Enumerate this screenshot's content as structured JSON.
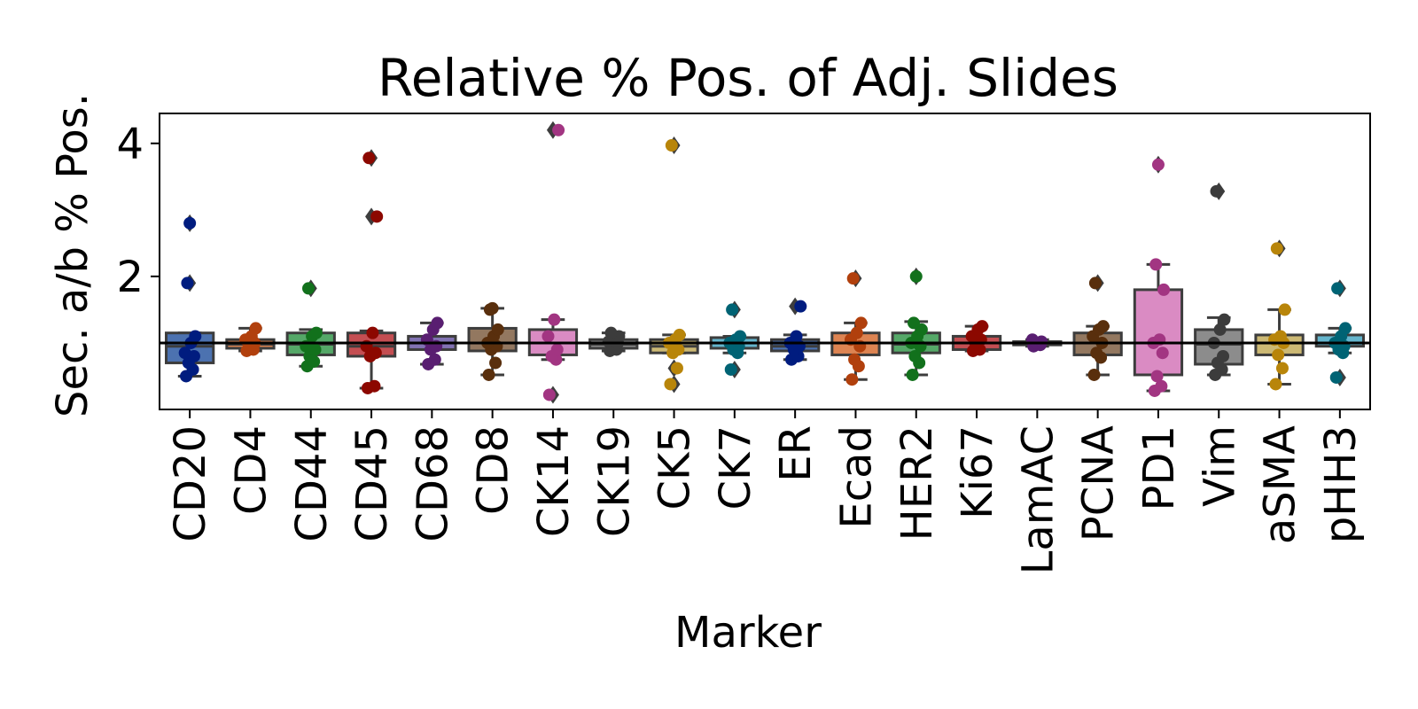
{
  "chart_data": {
    "type": "box",
    "title": "Relative % Pos. of Adj. Slides",
    "xlabel": "Marker",
    "ylabel": "Sec. a/b % Pos.",
    "ylim": [
      0,
      4.45
    ],
    "yticks": [
      2,
      4
    ],
    "reference_line": 1.0,
    "grid": false,
    "legend": "none",
    "categories": [
      "CD20",
      "CD4",
      "CD44",
      "CD45",
      "CD68",
      "CD8",
      "CK14",
      "CK19",
      "CK5",
      "CK7",
      "ER",
      "Ecad",
      "HER2",
      "Ki67",
      "LamAC",
      "PCNA",
      "PD1",
      "Vim",
      "aSMA",
      "pHH3"
    ],
    "series": [
      {
        "category": "CD20",
        "box_color": "#4c72b0",
        "point_color": "#001c7f",
        "box": {
          "whisker_low": 0.5,
          "q1": 0.7,
          "median": 0.95,
          "q3": 1.15,
          "whisker_high": 1.15
        },
        "outliers": [
          1.9,
          2.8
        ],
        "points": [
          0.5,
          0.6,
          0.7,
          0.8,
          0.85,
          1.0,
          1.1,
          1.9,
          2.8
        ]
      },
      {
        "category": "CD4",
        "box_color": "#dd8452",
        "point_color": "#b1400d",
        "box": {
          "whisker_low": 0.88,
          "q1": 0.92,
          "median": 0.98,
          "q3": 1.05,
          "whisker_high": 1.22
        },
        "outliers": [],
        "points": [
          0.88,
          0.9,
          0.95,
          1.0,
          1.05,
          1.1,
          1.22
        ]
      },
      {
        "category": "CD44",
        "box_color": "#55a868",
        "point_color": "#12711c",
        "box": {
          "whisker_low": 0.65,
          "q1": 0.82,
          "median": 0.98,
          "q3": 1.15,
          "whisker_high": 1.2
        },
        "outliers": [
          1.82
        ],
        "points": [
          0.65,
          0.72,
          0.8,
          0.9,
          0.95,
          1.1,
          1.15,
          1.82
        ]
      },
      {
        "category": "CD45",
        "box_color": "#c44e52",
        "point_color": "#8c0800",
        "box": {
          "whisker_low": 0.32,
          "q1": 0.8,
          "median": 0.95,
          "q3": 1.15,
          "whisker_high": 1.18
        },
        "outliers": [
          2.9,
          3.78
        ],
        "points": [
          0.32,
          0.35,
          0.8,
          0.85,
          0.95,
          1.15,
          2.9,
          3.78
        ]
      },
      {
        "category": "CD68",
        "box_color": "#8172b3",
        "point_color": "#591e71",
        "box": {
          "whisker_low": 0.68,
          "q1": 0.9,
          "median": 1.0,
          "q3": 1.1,
          "whisker_high": 1.3
        },
        "outliers": [],
        "points": [
          0.68,
          0.75,
          0.9,
          0.95,
          1.05,
          1.2,
          1.3
        ]
      },
      {
        "category": "CD8",
        "box_color": "#937860",
        "point_color": "#592f0d",
        "box": {
          "whisker_low": 0.52,
          "q1": 0.88,
          "median": 1.0,
          "q3": 1.22,
          "whisker_high": 1.52
        },
        "outliers": [],
        "points": [
          0.52,
          0.7,
          0.9,
          0.95,
          1.0,
          1.1,
          1.2,
          1.5,
          1.52
        ]
      },
      {
        "category": "CK14",
        "box_color": "#da8bc3",
        "point_color": "#a23582",
        "box": {
          "whisker_low": 0.75,
          "q1": 0.82,
          "median": 1.0,
          "q3": 1.2,
          "whisker_high": 1.35
        },
        "outliers": [
          0.22,
          4.2
        ],
        "points": [
          0.22,
          0.75,
          0.8,
          0.9,
          1.1,
          1.35,
          4.2
        ]
      },
      {
        "category": "CK19",
        "box_color": "#8c8c8c",
        "point_color": "#3c3c3c",
        "box": {
          "whisker_low": 0.88,
          "q1": 0.92,
          "median": 0.98,
          "q3": 1.05,
          "whisker_high": 1.15
        },
        "outliers": [],
        "points": [
          0.88,
          0.9,
          0.95,
          1.0,
          1.02,
          1.05,
          1.1,
          1.15
        ]
      },
      {
        "category": "CK5",
        "box_color": "#ccb974",
        "point_color": "#b8850a",
        "box": {
          "whisker_low": 0.85,
          "q1": 0.85,
          "median": 0.95,
          "q3": 1.05,
          "whisker_high": 1.12
        },
        "outliers": [
          0.38,
          0.62,
          3.97
        ],
        "points": [
          0.38,
          0.62,
          0.85,
          0.9,
          1.0,
          1.05,
          1.12,
          3.97
        ]
      },
      {
        "category": "CK7",
        "box_color": "#64b5cd",
        "point_color": "#006374",
        "box": {
          "whisker_low": 0.85,
          "q1": 0.92,
          "median": 1.0,
          "q3": 1.08,
          "whisker_high": 1.1
        },
        "outliers": [
          0.6,
          1.5
        ],
        "points": [
          0.6,
          0.85,
          0.9,
          0.95,
          1.0,
          1.05,
          1.1,
          1.5
        ]
      },
      {
        "category": "ER",
        "box_color": "#4c72b0",
        "point_color": "#001c7f",
        "box": {
          "whisker_low": 0.75,
          "q1": 0.88,
          "median": 0.95,
          "q3": 1.05,
          "whisker_high": 1.12
        },
        "outliers": [
          1.55
        ],
        "points": [
          0.75,
          0.8,
          0.9,
          0.95,
          1.0,
          1.1,
          1.55
        ]
      },
      {
        "category": "Ecad",
        "box_color": "#dd8452",
        "point_color": "#b1400d",
        "box": {
          "whisker_low": 0.45,
          "q1": 0.82,
          "median": 1.0,
          "q3": 1.15,
          "whisker_high": 1.3
        },
        "outliers": [
          1.97
        ],
        "points": [
          0.45,
          0.65,
          0.75,
          0.95,
          1.05,
          1.15,
          1.3,
          1.97
        ]
      },
      {
        "category": "HER2",
        "box_color": "#55a868",
        "point_color": "#12711c",
        "box": {
          "whisker_low": 0.52,
          "q1": 0.85,
          "median": 0.98,
          "q3": 1.15,
          "whisker_high": 1.32
        },
        "outliers": [
          2.0
        ],
        "points": [
          0.52,
          0.7,
          0.8,
          0.95,
          1.0,
          1.1,
          1.2,
          1.3,
          2.0
        ]
      },
      {
        "category": "Ki67",
        "box_color": "#c44e52",
        "point_color": "#8c0800",
        "box": {
          "whisker_low": 0.88,
          "q1": 0.9,
          "median": 1.0,
          "q3": 1.1,
          "whisker_high": 1.25
        },
        "outliers": [],
        "points": [
          0.88,
          0.9,
          1.0,
          1.05,
          1.1,
          1.2,
          1.25
        ]
      },
      {
        "category": "LamAC",
        "box_color": "#8172b3",
        "point_color": "#591e71",
        "box": {
          "whisker_low": 0.95,
          "q1": 0.97,
          "median": 1.0,
          "q3": 1.02,
          "whisker_high": 1.05
        },
        "outliers": [],
        "points": [
          0.95,
          0.97,
          1.0,
          1.02,
          1.05
        ]
      },
      {
        "category": "PCNA",
        "box_color": "#937860",
        "point_color": "#592f0d",
        "box": {
          "whisker_low": 0.52,
          "q1": 0.82,
          "median": 1.0,
          "q3": 1.15,
          "whisker_high": 1.25
        },
        "outliers": [
          1.9
        ],
        "points": [
          0.52,
          0.78,
          0.85,
          1.0,
          1.1,
          1.2,
          1.25,
          1.9
        ]
      },
      {
        "category": "PD1",
        "box_color": "#da8bc3",
        "point_color": "#a23582",
        "box": {
          "whisker_low": 0.28,
          "q1": 0.52,
          "median": 1.0,
          "q3": 1.8,
          "whisker_high": 2.18
        },
        "outliers": [
          3.68
        ],
        "points": [
          0.28,
          0.35,
          0.5,
          0.85,
          1.0,
          1.05,
          1.8,
          2.18,
          3.68
        ]
      },
      {
        "category": "Vim",
        "box_color": "#8c8c8c",
        "point_color": "#3c3c3c",
        "box": {
          "whisker_low": 0.52,
          "q1": 0.68,
          "median": 0.98,
          "q3": 1.2,
          "whisker_high": 1.38
        },
        "outliers": [
          3.28
        ],
        "points": [
          0.52,
          0.6,
          0.7,
          0.8,
          1.0,
          1.2,
          1.35,
          3.28
        ]
      },
      {
        "category": "aSMA",
        "box_color": "#ccb974",
        "point_color": "#b8850a",
        "box": {
          "whisker_low": 0.38,
          "q1": 0.82,
          "median": 1.0,
          "q3": 1.12,
          "whisker_high": 1.5
        },
        "outliers": [
          2.42
        ],
        "points": [
          0.38,
          0.62,
          0.82,
          1.0,
          1.05,
          1.1,
          1.5,
          2.42
        ]
      },
      {
        "category": "pHH3",
        "box_color": "#64b5cd",
        "point_color": "#006374",
        "box": {
          "whisker_low": 0.85,
          "q1": 0.95,
          "median": 1.0,
          "q3": 1.12,
          "whisker_high": 1.22
        },
        "outliers": [
          0.48,
          1.82
        ],
        "points": [
          0.48,
          0.85,
          0.9,
          0.95,
          1.0,
          1.1,
          1.22,
          1.82
        ]
      }
    ]
  }
}
